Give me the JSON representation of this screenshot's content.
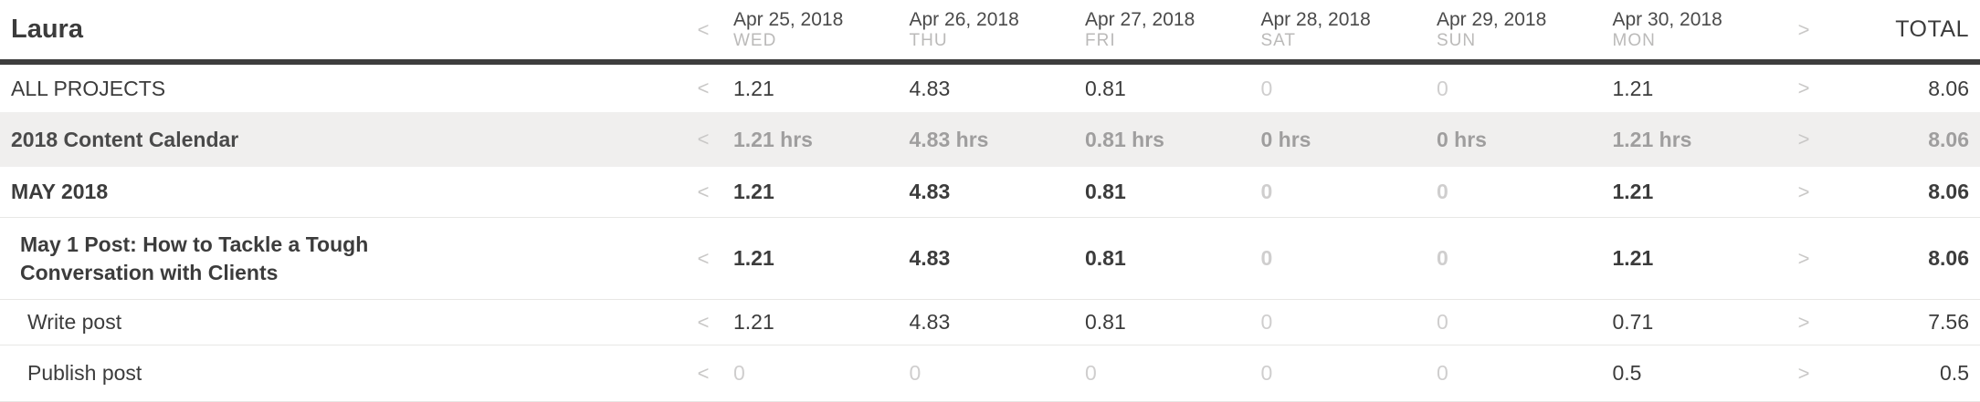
{
  "colors": {
    "header_border": "#3d3d3d",
    "row_border": "#e8e7e5",
    "project_row_bg": "#f0efee",
    "text_dark": "#3c3c3c",
    "text_gray": "#9f9e9e",
    "text_light_zero": "#cfcece",
    "day_of_week": "#bbbab9"
  },
  "icons": {
    "prev": "<",
    "next": ">"
  },
  "header": {
    "user_name": "Laura",
    "total_label": "TOTAL",
    "days": [
      {
        "date": "Apr 25, 2018",
        "dow": "WED"
      },
      {
        "date": "Apr 26, 2018",
        "dow": "THU"
      },
      {
        "date": "Apr 27, 2018",
        "dow": "FRI"
      },
      {
        "date": "Apr 28, 2018",
        "dow": "SAT"
      },
      {
        "date": "Apr 29, 2018",
        "dow": "SUN"
      },
      {
        "date": "Apr 30, 2018",
        "dow": "MON"
      }
    ]
  },
  "rows": [
    {
      "name": "ALL PROJECTS",
      "type": "all",
      "values": [
        "1.21",
        "4.83",
        "0.81",
        "0",
        "0",
        "1.21"
      ],
      "total": "8.06"
    },
    {
      "name": "2018 Content Calendar",
      "type": "project",
      "values": [
        "1.21 hrs",
        "4.83 hrs",
        "0.81 hrs",
        "0 hrs",
        "0 hrs",
        "1.21 hrs"
      ],
      "total": "8.06"
    },
    {
      "name": "MAY 2018",
      "type": "tasklist",
      "values": [
        "1.21",
        "4.83",
        "0.81",
        "0",
        "0",
        "1.21"
      ],
      "total": "8.06"
    },
    {
      "name": "May 1 Post: How to Tackle a Tough Conversation with Clients",
      "type": "task",
      "values": [
        "1.21",
        "4.83",
        "0.81",
        "0",
        "0",
        "1.21"
      ],
      "total": "8.06"
    },
    {
      "name": "Write post",
      "type": "subtask",
      "values": [
        "1.21",
        "4.83",
        "0.81",
        "0",
        "0",
        "0.71"
      ],
      "total": "7.56"
    },
    {
      "name": "Publish post",
      "type": "subtask",
      "values": [
        "0",
        "0",
        "0",
        "0",
        "0",
        "0.5"
      ],
      "total": "0.5"
    }
  ]
}
